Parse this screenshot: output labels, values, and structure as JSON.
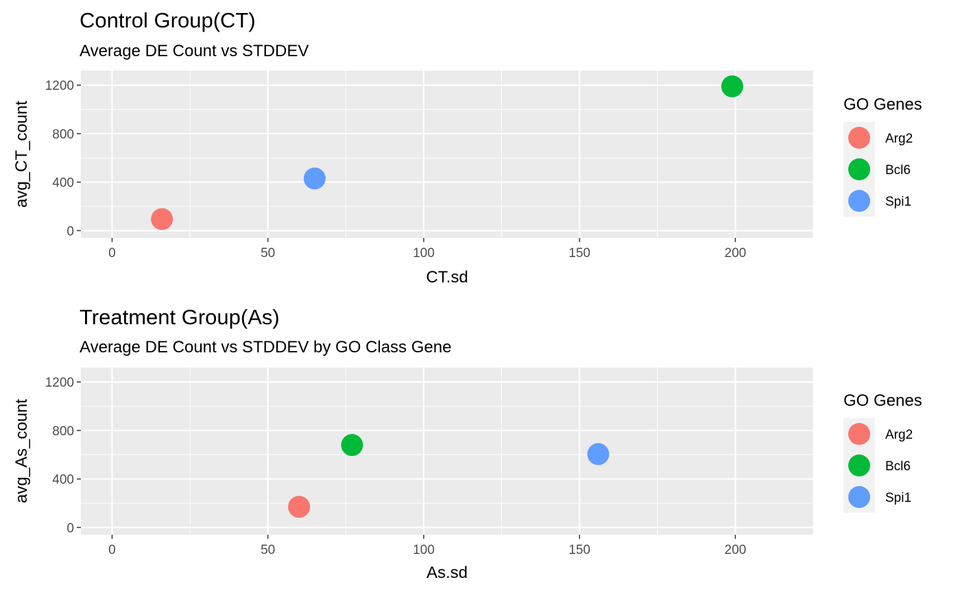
{
  "chart_data": [
    {
      "type": "scatter",
      "title": "Control Group(CT)",
      "subtitle": "Average DE Count vs STDDEV",
      "xlabel": "CT.sd",
      "ylabel": "avg_CT_count",
      "xlim": [
        -10,
        225
      ],
      "ylim": [
        -60,
        1320
      ],
      "x_ticks": [
        0,
        50,
        100,
        150,
        200
      ],
      "x_tick_labels": [
        "0",
        "50",
        "100",
        "150",
        "200"
      ],
      "y_ticks": [
        0,
        400,
        800,
        1200
      ],
      "y_tick_labels": [
        "0",
        "400",
        "800",
        "1200"
      ],
      "grid": true,
      "legend": {
        "title": "GO Genes",
        "placement": "right",
        "entries": [
          "Arg2",
          "Bcl6",
          "Spi1"
        ]
      },
      "series": [
        {
          "name": "Arg2",
          "color": "#F8766D",
          "points": [
            {
              "x": 16,
              "y": 95
            }
          ]
        },
        {
          "name": "Bcl6",
          "color": "#00BA38",
          "points": [
            {
              "x": 199,
              "y": 1190
            }
          ]
        },
        {
          "name": "Spi1",
          "color": "#619CFF",
          "points": [
            {
              "x": 65,
              "y": 430
            }
          ]
        }
      ]
    },
    {
      "type": "scatter",
      "title": "Treatment Group(As)",
      "subtitle": "Average DE Count vs STDDEV by GO Class Gene",
      "xlabel": "As.sd",
      "ylabel": "avg_As_count",
      "xlim": [
        -10,
        225
      ],
      "ylim": [
        -60,
        1320
      ],
      "x_ticks": [
        0,
        50,
        100,
        150,
        200
      ],
      "x_tick_labels": [
        "0",
        "50",
        "100",
        "150",
        "200"
      ],
      "y_ticks": [
        0,
        400,
        800,
        1200
      ],
      "y_tick_labels": [
        "0",
        "400",
        "800",
        "1200"
      ],
      "grid": true,
      "legend": {
        "title": "GO Genes",
        "placement": "right",
        "entries": [
          "Arg2",
          "Bcl6",
          "Spi1"
        ]
      },
      "series": [
        {
          "name": "Arg2",
          "color": "#F8766D",
          "points": [
            {
              "x": 60,
              "y": 170
            }
          ]
        },
        {
          "name": "Bcl6",
          "color": "#00BA38",
          "points": [
            {
              "x": 77,
              "y": 680
            }
          ]
        },
        {
          "name": "Spi1",
          "color": "#619CFF",
          "points": [
            {
              "x": 156,
              "y": 605
            }
          ]
        }
      ]
    }
  ],
  "colors": {
    "panel_background": "#EBEBEB",
    "grid_line": "#FFFFFF",
    "legend_key_background": "#F2F2F2",
    "tick_text": "#4D4D4D",
    "tick_mark": "#333333"
  }
}
